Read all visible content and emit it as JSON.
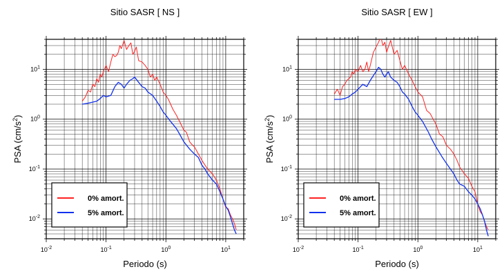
{
  "chart_data": [
    {
      "type": "line",
      "title": "Sitio SASR [ NS ]",
      "xlabel": "Periodo (s)",
      "ylabel_main": "PSA (cm/s",
      "ylabel_sup": "2",
      "ylabel_close": ")",
      "x_scale": "log",
      "y_scale": "log",
      "xlim": [
        0.01,
        20
      ],
      "ylim": [
        0.004,
        40
      ],
      "grid": true,
      "legend_position": "bottom-left",
      "x_ticks": [
        {
          "value": 0.01,
          "base": "10",
          "exp": "-2"
        },
        {
          "value": 0.1,
          "base": "10",
          "exp": "-1"
        },
        {
          "value": 1,
          "base": "10",
          "exp": "0"
        },
        {
          "value": 10,
          "base": "10",
          "exp": "1"
        }
      ],
      "y_ticks": [
        {
          "value": 0.01,
          "base": "10",
          "exp": "-2"
        },
        {
          "value": 0.1,
          "base": "10",
          "exp": "-1"
        },
        {
          "value": 1,
          "base": "10",
          "exp": "0"
        },
        {
          "value": 10,
          "base": "10",
          "exp": "1"
        }
      ],
      "series": [
        {
          "name": "0% amort.",
          "color": "#ff2020",
          "x": [
            0.04,
            0.045,
            0.05,
            0.055,
            0.06,
            0.065,
            0.07,
            0.075,
            0.08,
            0.085,
            0.09,
            0.1,
            0.11,
            0.12,
            0.13,
            0.14,
            0.15,
            0.16,
            0.17,
            0.18,
            0.2,
            0.22,
            0.24,
            0.26,
            0.28,
            0.3,
            0.32,
            0.35,
            0.4,
            0.45,
            0.5,
            0.55,
            0.6,
            0.65,
            0.7,
            0.8,
            0.9,
            1.0,
            1.1,
            1.2,
            1.3,
            1.5,
            1.7,
            2.0,
            2.2,
            2.5,
            2.8,
            3.0,
            3.5,
            4.0,
            4.5,
            5.0,
            6.0,
            7.0,
            8.0,
            9.0,
            10,
            11,
            12,
            13,
            14,
            15
          ],
          "y": [
            2.3,
            2.8,
            3.8,
            3.5,
            5.0,
            4.5,
            6.5,
            5.5,
            8.0,
            7.0,
            9.0,
            12,
            9,
            14,
            20,
            18,
            19,
            22,
            30,
            26,
            38,
            25,
            30,
            34,
            20,
            23,
            28,
            15,
            14,
            12,
            10,
            7,
            8,
            6,
            7,
            5,
            3.5,
            3.0,
            2.5,
            2.0,
            1.6,
            1.2,
            0.9,
            0.6,
            0.55,
            0.35,
            0.3,
            0.28,
            0.2,
            0.15,
            0.12,
            0.1,
            0.08,
            0.06,
            0.04,
            0.025,
            0.017,
            0.016,
            0.012,
            0.01,
            0.008,
            0.006
          ]
        },
        {
          "name": "5% amort.",
          "color": "#1030ee",
          "x": [
            0.04,
            0.05,
            0.06,
            0.07,
            0.08,
            0.09,
            0.1,
            0.12,
            0.14,
            0.16,
            0.18,
            0.2,
            0.22,
            0.25,
            0.28,
            0.3,
            0.35,
            0.4,
            0.45,
            0.5,
            0.6,
            0.7,
            0.8,
            0.9,
            1.0,
            1.2,
            1.5,
            1.7,
            2.0,
            2.5,
            3.0,
            3.5,
            4.0,
            4.5,
            5.0,
            6.0,
            7.0,
            8.0,
            9.0,
            10,
            11,
            12,
            13,
            14,
            15
          ],
          "y": [
            2.0,
            2.1,
            2.2,
            2.3,
            2.6,
            3.0,
            2.8,
            3.0,
            4.5,
            5.5,
            5.0,
            4.2,
            5.0,
            6.0,
            6.5,
            7.0,
            5.5,
            4.5,
            4.2,
            3.5,
            3.0,
            2.3,
            1.8,
            1.4,
            1.2,
            0.9,
            0.65,
            0.5,
            0.35,
            0.25,
            0.2,
            0.17,
            0.12,
            0.1,
            0.08,
            0.06,
            0.05,
            0.035,
            0.025,
            0.018,
            0.015,
            0.011,
            0.008,
            0.006,
            0.005
          ]
        }
      ]
    },
    {
      "type": "line",
      "title": "Sitio SASR [ EW ]",
      "xlabel": "Periodo (s)",
      "ylabel_main": "PSA (cm/s",
      "ylabel_sup": "2",
      "ylabel_close": ")",
      "x_scale": "log",
      "y_scale": "log",
      "xlim": [
        0.01,
        20
      ],
      "ylim": [
        0.004,
        40
      ],
      "grid": true,
      "legend_position": "bottom-left",
      "x_ticks": [
        {
          "value": 0.01,
          "base": "10",
          "exp": "-2"
        },
        {
          "value": 0.1,
          "base": "10",
          "exp": "-1"
        },
        {
          "value": 1,
          "base": "10",
          "exp": "0"
        },
        {
          "value": 10,
          "base": "10",
          "exp": "1"
        }
      ],
      "y_ticks": [
        {
          "value": 0.01,
          "base": "10",
          "exp": "-2"
        },
        {
          "value": 0.1,
          "base": "10",
          "exp": "-1"
        },
        {
          "value": 1,
          "base": "10",
          "exp": "0"
        },
        {
          "value": 10,
          "base": "10",
          "exp": "1"
        }
      ],
      "series": [
        {
          "name": "0% amort.",
          "color": "#ff2020",
          "x": [
            0.04,
            0.045,
            0.05,
            0.055,
            0.06,
            0.065,
            0.07,
            0.075,
            0.08,
            0.085,
            0.09,
            0.1,
            0.11,
            0.12,
            0.13,
            0.14,
            0.15,
            0.16,
            0.18,
            0.2,
            0.22,
            0.24,
            0.26,
            0.28,
            0.3,
            0.32,
            0.35,
            0.4,
            0.45,
            0.5,
            0.55,
            0.6,
            0.7,
            0.8,
            0.9,
            1.0,
            1.2,
            1.4,
            1.6,
            1.8,
            2.0,
            2.3,
            2.6,
            3.0,
            3.5,
            4.0,
            4.5,
            5.0,
            6.0,
            7.0,
            8.0,
            9.0,
            10,
            11,
            12,
            13,
            14,
            15
          ],
          "y": [
            3.2,
            4.0,
            3.0,
            4.5,
            5.0,
            6.0,
            6.5,
            7.0,
            9.0,
            8.0,
            10,
            9,
            12,
            9,
            10,
            14,
            9,
            12,
            22,
            28,
            35,
            45,
            30,
            35,
            22,
            28,
            38,
            20,
            24,
            15,
            10,
            12,
            8,
            6,
            4.5,
            3.5,
            2.8,
            1.5,
            1.3,
            1.0,
            0.8,
            0.5,
            0.45,
            0.3,
            0.25,
            0.2,
            0.15,
            0.11,
            0.08,
            0.065,
            0.045,
            0.035,
            0.02,
            0.014,
            0.012,
            0.009,
            0.007,
            0.006
          ]
        },
        {
          "name": "5% amort.",
          "color": "#1030ee",
          "x": [
            0.04,
            0.05,
            0.06,
            0.07,
            0.08,
            0.09,
            0.1,
            0.12,
            0.14,
            0.16,
            0.18,
            0.2,
            0.22,
            0.24,
            0.26,
            0.28,
            0.3,
            0.32,
            0.35,
            0.4,
            0.45,
            0.5,
            0.55,
            0.6,
            0.7,
            0.8,
            0.9,
            1.0,
            1.2,
            1.5,
            1.7,
            2.0,
            2.5,
            3.0,
            3.5,
            4.0,
            4.5,
            5.0,
            6.0,
            7.0,
            8.0,
            9.0,
            10,
            11,
            12,
            13,
            14,
            15
          ],
          "y": [
            2.5,
            2.5,
            2.6,
            2.8,
            3.2,
            3.5,
            4.0,
            5.0,
            4.5,
            6.0,
            7.5,
            9.0,
            11,
            10,
            8,
            7,
            8,
            9,
            7,
            6,
            5.5,
            4.5,
            3.5,
            3.2,
            2.5,
            1.8,
            1.4,
            1.2,
            0.9,
            0.55,
            0.4,
            0.28,
            0.18,
            0.13,
            0.1,
            0.08,
            0.06,
            0.05,
            0.045,
            0.035,
            0.03,
            0.025,
            0.02,
            0.016,
            0.012,
            0.009,
            0.006,
            0.0045
          ]
        }
      ]
    }
  ]
}
